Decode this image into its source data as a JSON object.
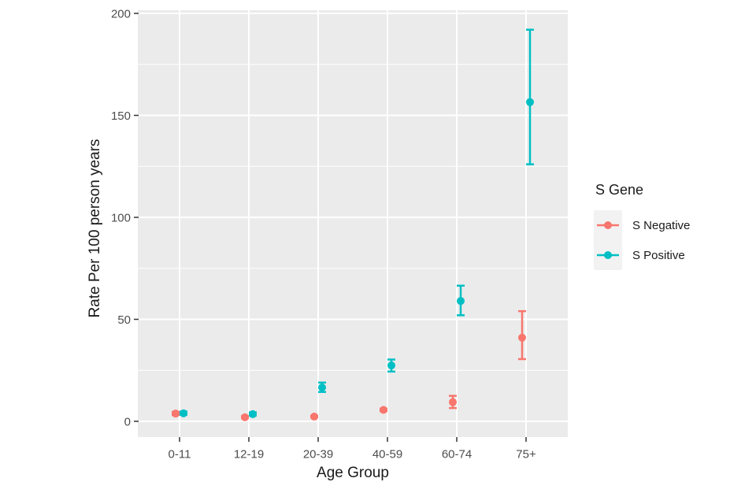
{
  "chart_data": {
    "type": "scatter",
    "subtype": "pointrange-errorbar",
    "title": "",
    "xlabel": "Age Group",
    "ylabel": "Rate Per 100 person years",
    "categories": [
      "0-11",
      "12-19",
      "20-39",
      "40-59",
      "60-74",
      "75+"
    ],
    "series": [
      {
        "name": "S Negative",
        "color": "#F8766D",
        "points": [
          {
            "value": 3.8,
            "lo": 3.1,
            "hi": 4.6
          },
          {
            "value": 2.0,
            "lo": 1.6,
            "hi": 2.5
          },
          {
            "value": 2.3,
            "lo": 2.0,
            "hi": 2.7
          },
          {
            "value": 5.6,
            "lo": 5.0,
            "hi": 6.2
          },
          {
            "value": 9.4,
            "lo": 6.5,
            "hi": 12.5
          },
          {
            "value": 41.0,
            "lo": 30.5,
            "hi": 54.0
          }
        ]
      },
      {
        "name": "S Positive",
        "color": "#00BFC4",
        "points": [
          {
            "value": 3.9,
            "lo": 3.2,
            "hi": 4.8
          },
          {
            "value": 3.5,
            "lo": 2.8,
            "hi": 4.4
          },
          {
            "value": 16.6,
            "lo": 14.4,
            "hi": 19.0
          },
          {
            "value": 27.4,
            "lo": 24.4,
            "hi": 30.3
          },
          {
            "value": 59.0,
            "lo": 52.0,
            "hi": 66.5
          },
          {
            "value": 156.5,
            "lo": 126.0,
            "hi": 192.0
          }
        ]
      }
    ],
    "ylim": [
      0,
      200
    ],
    "y_major_ticks": [
      0,
      50,
      100,
      150,
      200
    ],
    "y_minor_ticks": [
      25,
      75,
      125,
      175
    ],
    "grid": "on",
    "legend": {
      "title": "S Gene",
      "position": "right",
      "items": [
        "S Negative",
        "S Positive"
      ]
    },
    "colors": {
      "panel_bg": "#EBEBEB",
      "gridline": "#FFFFFF",
      "tick_mark": "#333333",
      "tick_label": "#4D4D4D",
      "axis_title": "#1A1A1A",
      "legend_key_bg": "#F2F2F2"
    }
  }
}
